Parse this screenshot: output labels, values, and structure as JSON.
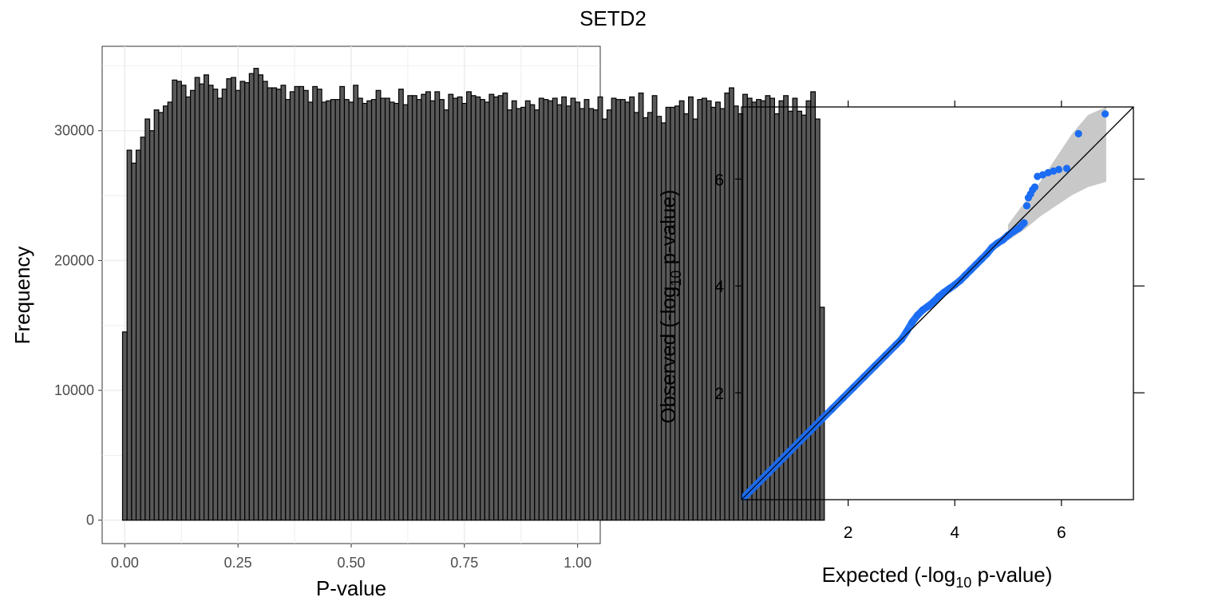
{
  "figure": {
    "title": "SETD2"
  },
  "colors": {
    "bar_fill": "#595959",
    "bar_stroke": "#000000",
    "panel_grid": "#ebebeb",
    "point": "#1b6cf2",
    "ci_band": "#c8c8c8",
    "reference_line": "#000000"
  },
  "chart_data": [
    {
      "type": "bar",
      "subtype": "histogram",
      "xlabel": "P-value",
      "ylabel": "Frequency",
      "xlim": [
        -0.05,
        1.05
      ],
      "ylim": [
        -1800,
        36500
      ],
      "xticks": [
        0.0,
        0.25,
        0.5,
        0.75,
        1.0
      ],
      "xtick_labels": [
        "0.00",
        "0.25",
        "0.50",
        "0.75",
        "1.00"
      ],
      "yticks": [
        0,
        10000,
        20000,
        30000
      ],
      "ytick_labels": [
        "0",
        "10000",
        "20000",
        "30000"
      ],
      "grid": true,
      "bin_start": -0.005,
      "bin_width": 0.01,
      "values": [
        14500,
        28500,
        27500,
        28500,
        29500,
        30900,
        30000,
        31600,
        31400,
        31900,
        32200,
        33900,
        33800,
        33500,
        32600,
        33100,
        34100,
        33600,
        34300,
        33500,
        33200,
        32500,
        33200,
        34000,
        34100,
        33100,
        33800,
        33700,
        34400,
        34800,
        34300,
        33800,
        33300,
        33300,
        33200,
        33500,
        32400,
        33000,
        33400,
        33400,
        33100,
        32200,
        33400,
        33200,
        32200,
        32300,
        32400,
        32400,
        33400,
        32400,
        32200,
        33500,
        32500,
        32100,
        32300,
        32400,
        33100,
        32500,
        32500,
        32200,
        32100,
        33200,
        32000,
        32700,
        32700,
        32400,
        32800,
        33000,
        32300,
        33000,
        32400,
        31600,
        32800,
        32500,
        32600,
        32100,
        33000,
        32700,
        32600,
        32400,
        32200,
        32800,
        32600,
        32700,
        32900,
        31600,
        32300,
        31700,
        31800,
        32300,
        32000,
        31600,
        32500,
        32400,
        32300,
        32500,
        32000,
        32600,
        31900,
        32500,
        32200,
        31700,
        32400,
        31700,
        31600,
        32600,
        30900,
        31600,
        32500,
        32400,
        32400,
        32200,
        32600,
        31400,
        32900,
        31000,
        31400,
        32700,
        31100,
        30600,
        31800,
        31800,
        31900,
        32300,
        31300,
        32600,
        30900,
        32400,
        32500,
        32300,
        31800,
        32200,
        31700,
        32900,
        33300,
        31900,
        31300,
        32800,
        32500,
        32200,
        32400,
        32300,
        32700,
        32500,
        31300,
        32300,
        32700,
        31500,
        32500,
        31500,
        31200,
        32300,
        33000,
        30900,
        16400
      ],
      "values_note": ""
    },
    {
      "type": "scatter",
      "subtype": "qq-plot",
      "xlabel_prefix": "Expected (-log",
      "xlabel_sub": "10",
      "xlabel_suffix": " p-value)",
      "ylabel_prefix": "Observed (-log",
      "ylabel_sub": "10",
      "ylabel_suffix": " p-value)",
      "xlim": [
        0,
        7.35
      ],
      "ylim": [
        0,
        7.35
      ],
      "xticks": [
        2,
        4,
        6
      ],
      "yticks": [
        2,
        4,
        6
      ],
      "xtick_labels": [
        "2",
        "4",
        "6"
      ],
      "ytick_labels": [
        "2",
        "4",
        "6"
      ],
      "grid": false,
      "reference_line": {
        "x": [
          0,
          7.35
        ],
        "y": [
          0,
          7.35
        ]
      },
      "confidence_band": {
        "x": [
          5.0,
          5.3,
          5.6,
          5.9,
          6.2,
          6.5,
          6.84
        ],
        "upper": [
          5.15,
          5.55,
          5.95,
          6.4,
          6.85,
          7.2,
          7.35
        ],
        "lower": [
          4.85,
          5.05,
          5.3,
          5.5,
          5.7,
          5.85,
          5.95
        ]
      },
      "points_x": [
        0.05,
        0.15,
        0.3,
        0.5,
        0.7,
        0.9,
        1.1,
        1.3,
        1.5,
        1.7,
        1.9,
        2.1,
        2.3,
        2.5,
        2.7,
        2.9,
        3.0,
        3.1,
        3.2,
        3.3,
        3.4,
        3.5,
        3.6,
        3.7,
        3.8,
        3.9,
        4.0,
        4.1,
        4.2,
        4.3,
        4.4,
        4.5,
        4.6,
        4.7,
        4.8,
        4.9,
        5.0,
        5.1,
        5.2,
        5.3,
        5.35,
        5.38,
        5.42,
        5.46,
        5.5,
        5.55,
        5.65,
        5.75,
        5.85,
        5.95,
        6.1,
        6.32,
        6.82
      ],
      "points_y": [
        0.05,
        0.15,
        0.3,
        0.5,
        0.7,
        0.9,
        1.1,
        1.3,
        1.5,
        1.7,
        1.9,
        2.1,
        2.3,
        2.5,
        2.7,
        2.9,
        3.0,
        3.15,
        3.32,
        3.45,
        3.55,
        3.62,
        3.7,
        3.8,
        3.88,
        3.95,
        4.02,
        4.1,
        4.2,
        4.3,
        4.4,
        4.5,
        4.6,
        4.72,
        4.8,
        4.86,
        4.95,
        5.02,
        5.08,
        5.18,
        5.5,
        5.65,
        5.72,
        5.8,
        5.85,
        6.05,
        6.08,
        6.12,
        6.15,
        6.18,
        6.2,
        6.85,
        7.22
      ]
    }
  ]
}
